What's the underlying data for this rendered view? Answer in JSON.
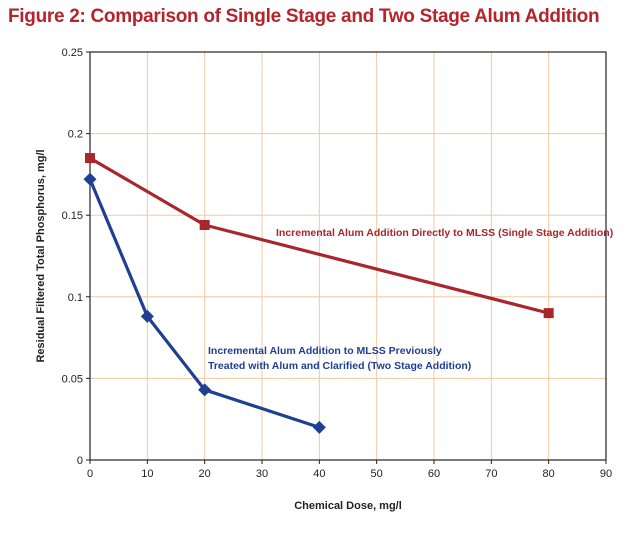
{
  "colors": {
    "title": "#b5242b",
    "grid": "#f0c9a0",
    "axis": "#222222",
    "single_stage": "#a8262c",
    "two_stage": "#1f3f93"
  },
  "chart_data": {
    "type": "line",
    "title": "Figure 2: Comparison of Single Stage and Two Stage Alum Addition",
    "xlabel": "Chemical Dose, mg/l",
    "ylabel": "Residual Filtered Total Phosphorus, mg/l",
    "xlim": [
      0,
      90
    ],
    "ylim": [
      0,
      0.25
    ],
    "xticks": [
      "0",
      "10",
      "20",
      "30",
      "40",
      "50",
      "60",
      "70",
      "80",
      "90"
    ],
    "yticks": [
      "0",
      "0.05",
      "0.1",
      "0.15",
      "0.2",
      "0.25"
    ],
    "grid": true,
    "series": [
      {
        "key": "single_stage",
        "marker": "square",
        "points": [
          [
            0,
            0.185
          ],
          [
            20,
            0.144
          ],
          [
            80,
            0.09
          ]
        ],
        "annotation": [
          "Incremental Alum Addition Directly to MLSS (Single Stage Addition)"
        ]
      },
      {
        "key": "two_stage",
        "marker": "diamond",
        "points": [
          [
            0,
            0.172
          ],
          [
            10,
            0.088
          ],
          [
            20,
            0.043
          ],
          [
            40,
            0.02
          ]
        ],
        "annotation": [
          "Incremental Alum Addition to MLSS Previously",
          "Treated with Alum and Clarified (Two Stage Addition)"
        ]
      }
    ]
  }
}
